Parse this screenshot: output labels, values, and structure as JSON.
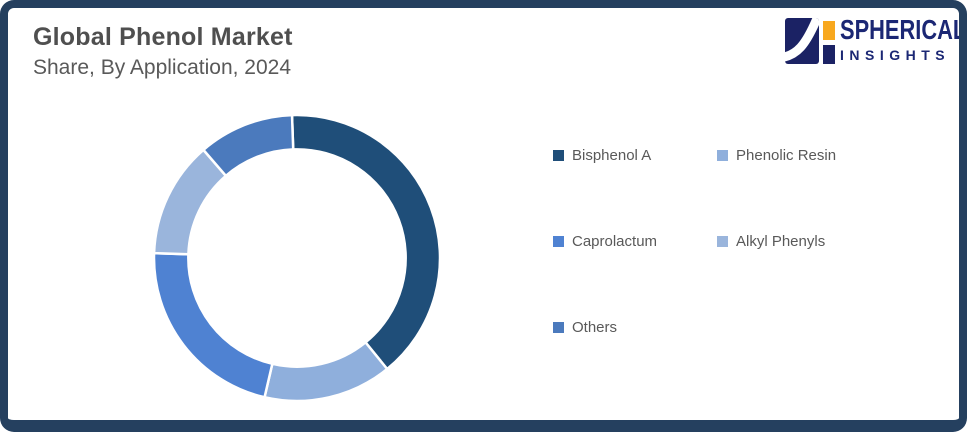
{
  "header": {
    "title": "Global Phenol Market",
    "subtitle": "Share, By Application, 2024"
  },
  "brand": {
    "name": "SPHERICAL",
    "tagline": "INSIGHTS",
    "logo_icon": "spherical-insights-logo",
    "text_color": "#1B2774",
    "mark_navy_color": "#1B2264",
    "mark_orange_color": "#F8A81E"
  },
  "frame": {
    "border_color": "#25405F",
    "background_color": "#FFFFFF"
  },
  "text_colors": {
    "title": "#4F4F4F",
    "subtitle": "#595959",
    "legend": "#595959"
  },
  "chart_data": {
    "type": "pie",
    "variant": "donut",
    "title": "Global Phenol Market Share, By Application, 2024",
    "start_angle_deg": -2,
    "inner_radius_ratio": 0.76,
    "gap_stroke_color": "#FFFFFF",
    "legend_position": "right",
    "segments": [
      {
        "label": "Bisphenol A",
        "value": 39.7,
        "color": "#1F4E79"
      },
      {
        "label": "Phenolic Resin",
        "value": 14.5,
        "color": "#8FAFDC"
      },
      {
        "label": "Caprolactum",
        "value": 21.9,
        "color": "#4F82D2"
      },
      {
        "label": "Alkyl Phenyls",
        "value": 13.1,
        "color": "#9AB5DC"
      },
      {
        "label": "Others",
        "value": 10.8,
        "color": "#4B7ABD"
      }
    ]
  }
}
